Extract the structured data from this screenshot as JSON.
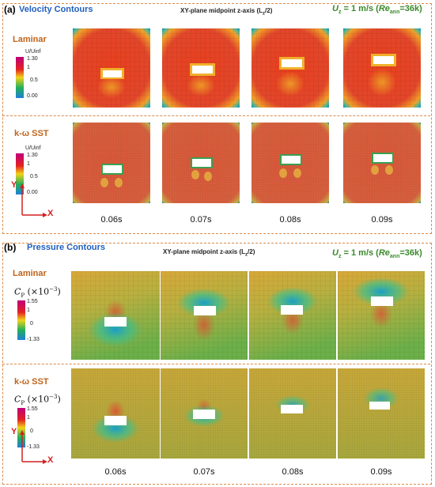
{
  "panel_a": {
    "label": "(a)",
    "title": "Velocity Contours",
    "midpoint": "XY-plane midpoint z-axis (L",
    "midpoint_sub": "z",
    "midpoint_tail": "/2)",
    "uz_main": "U",
    "uz_sub": "z",
    "uz_text": " = 1 m/s (",
    "re": "Re",
    "re_sub": "ann",
    "re_tail": "=36k)",
    "rows": [
      {
        "model": "Laminar",
        "cb_title": "U/Uinf",
        "ticks": [
          "1.30",
          "1",
          "0.5",
          "0.00"
        ]
      },
      {
        "model": "k-ω SST",
        "cb_title": "U/Uinf",
        "ticks": [
          "1.30",
          "1",
          "0.5",
          "0.00"
        ]
      }
    ],
    "times": [
      "0.06s",
      "0.07s",
      "0.08s",
      "0.09s"
    ],
    "axis_y": "Y",
    "axis_x": "X"
  },
  "panel_b": {
    "label": "(b)",
    "title": "Pressure Contours",
    "midpoint": "XY-plane midpoint z-axis (L",
    "midpoint_sub": "z",
    "midpoint_tail": "/2)",
    "uz_main": "U",
    "uz_sub": "z",
    "uz_text": " = 1 m/s (",
    "re": "Re",
    "re_sub": "ann",
    "re_tail": "=36k)",
    "rows": [
      {
        "model": "Laminar",
        "cb_title": "C",
        "cb_sub": "P",
        "cb_factor": "(×10",
        "cb_exp": "−3",
        "cb_close": ")",
        "ticks": [
          "1.55",
          "1",
          "0",
          "-1.33"
        ]
      },
      {
        "model": "k-ω SST",
        "cb_title": "C",
        "cb_sub": "P",
        "cb_factor": "(×10",
        "cb_exp": "−3",
        "cb_close": ")",
        "ticks": [
          "1.55",
          "1",
          "0",
          "-1.33"
        ]
      }
    ],
    "times": [
      "0.06s",
      "0.07s",
      "0.08s",
      "0.09s"
    ],
    "axis_y": "Y",
    "axis_x": "X"
  }
}
